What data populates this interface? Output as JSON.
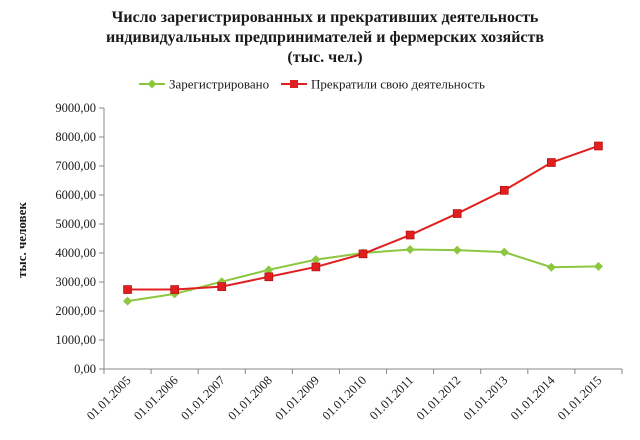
{
  "chart_data": {
    "type": "line",
    "title": [
      "Число зарегистрированных  и прекративших деятельность",
      "индивидуальных предпринимателей и фермерских хозяйств",
      "(тыс. чел.)"
    ],
    "ylabel": "тыс. человек",
    "xlabel": "",
    "categories": [
      "01.01.2005",
      "01.01.2006",
      "01.01.2007",
      "01.01.2008",
      "01.01.2009",
      "01.01.2010",
      "01.01.2011",
      "01.01.2012",
      "01.01.2013",
      "01.01.2014",
      "01.01.2015"
    ],
    "ylim": [
      0,
      9000
    ],
    "yticks": [
      0,
      1000,
      2000,
      3000,
      4000,
      5000,
      6000,
      7000,
      8000,
      9000
    ],
    "ytick_labels": [
      "0,00",
      "1000,00",
      "2000,00",
      "3000,00",
      "4000,00",
      "5000,00",
      "6000,00",
      "7000,00",
      "8000,00",
      "9000,00"
    ],
    "grid": false,
    "legend_position": "top",
    "series": [
      {
        "name": "Зарегистрировано",
        "color": "#8dc63f",
        "marker": "diamond",
        "values": [
          2340,
          2590,
          3010,
          3420,
          3770,
          4000,
          4120,
          4100,
          4030,
          3510,
          3540
        ]
      },
      {
        "name": "Прекратили свою деятельность",
        "color": "#e02020",
        "marker": "square",
        "values": [
          2740,
          2740,
          2840,
          3180,
          3520,
          3970,
          4620,
          5360,
          6160,
          7120,
          7690
        ]
      }
    ]
  }
}
